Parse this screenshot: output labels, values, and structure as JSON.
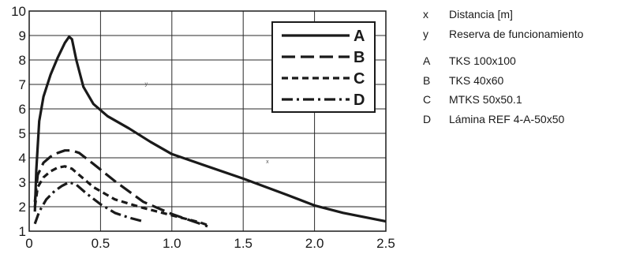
{
  "chart_data": {
    "type": "line",
    "x_ticks": [
      "0",
      "0.5",
      "1.0",
      "1.5",
      "2.0",
      "2.5"
    ],
    "y_ticks": [
      "1",
      "2",
      "3",
      "4",
      "5",
      "6",
      "7",
      "8",
      "9",
      "10"
    ],
    "xlim": [
      0,
      2.5
    ],
    "ylim": [
      1,
      10
    ],
    "grid": true,
    "axis_markers": {
      "x": "x",
      "y": "y"
    },
    "series": [
      {
        "name": "A",
        "style": "solid",
        "x": [
          0.04,
          0.05,
          0.07,
          0.1,
          0.15,
          0.2,
          0.25,
          0.28,
          0.3,
          0.33,
          0.38,
          0.45,
          0.55,
          0.7,
          0.85,
          1.0,
          1.2,
          1.5,
          1.8,
          2.0,
          2.2,
          2.5
        ],
        "y": [
          1.8,
          3.5,
          5.5,
          6.5,
          7.4,
          8.1,
          8.7,
          8.95,
          8.85,
          8.0,
          6.9,
          6.2,
          5.7,
          5.2,
          4.65,
          4.15,
          3.75,
          3.15,
          2.5,
          2.05,
          1.75,
          1.4
        ]
      },
      {
        "name": "B",
        "style": "long-dash",
        "x": [
          0.04,
          0.06,
          0.1,
          0.15,
          0.2,
          0.25,
          0.3,
          0.35,
          0.45,
          0.6,
          0.8,
          1.0,
          1.1,
          1.25
        ],
        "y": [
          2.2,
          3.3,
          3.8,
          4.05,
          4.2,
          4.3,
          4.3,
          4.2,
          3.75,
          3.05,
          2.2,
          1.7,
          1.5,
          1.2
        ]
      },
      {
        "name": "C",
        "style": "short-dash",
        "x": [
          0.04,
          0.06,
          0.1,
          0.15,
          0.2,
          0.25,
          0.3,
          0.35,
          0.45,
          0.6,
          0.8,
          1.0,
          1.2,
          1.25
        ],
        "y": [
          2.0,
          2.8,
          3.2,
          3.45,
          3.6,
          3.65,
          3.55,
          3.3,
          2.8,
          2.3,
          1.95,
          1.65,
          1.35,
          1.25
        ]
      },
      {
        "name": "D",
        "style": "dash-dot",
        "x": [
          0.04,
          0.07,
          0.12,
          0.18,
          0.23,
          0.28,
          0.33,
          0.4,
          0.5,
          0.6,
          0.7,
          0.8
        ],
        "y": [
          1.3,
          1.8,
          2.3,
          2.65,
          2.85,
          3.0,
          2.9,
          2.55,
          2.1,
          1.75,
          1.55,
          1.4
        ]
      }
    ]
  },
  "legend_box": [
    "A",
    "B",
    "C",
    "D"
  ],
  "side_legend": {
    "axes": [
      {
        "key": "x",
        "desc": "Distancia [m]"
      },
      {
        "key": "y",
        "desc": "Reserva de funcionamiento"
      }
    ],
    "series": [
      {
        "key": "A",
        "desc": "TKS 100x100"
      },
      {
        "key": "B",
        "desc": "TKS 40x60"
      },
      {
        "key": "C",
        "desc": "MTKS 50x50.1"
      },
      {
        "key": "D",
        "desc": "Lámina REF 4-A-50x50"
      }
    ]
  }
}
